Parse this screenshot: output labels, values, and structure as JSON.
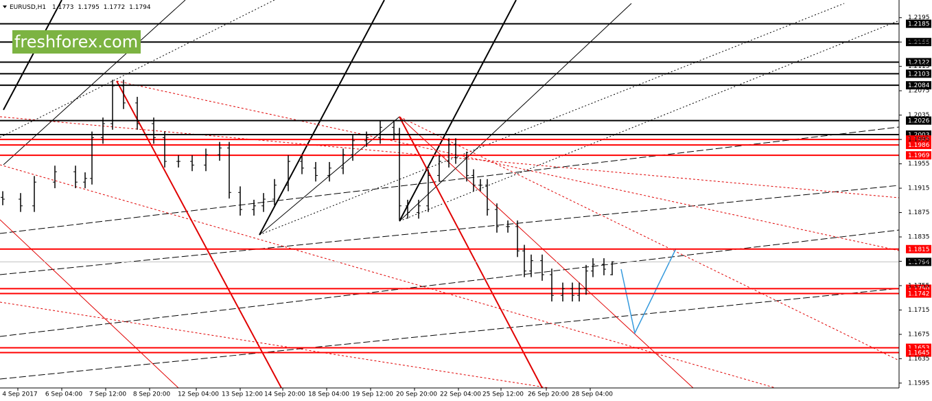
{
  "chart_data": {
    "type": "ohlc",
    "title": "EURUSD,H1",
    "header_values": [
      1.1773,
      1.1795,
      1.1772,
      1.1794
    ],
    "watermark": "freshforex.com",
    "color": "#000000",
    "x": [
      1,
      14,
      24,
      39,
      54,
      61,
      66,
      74,
      81,
      89,
      99,
      111,
      119,
      129,
      139,
      149,
      159,
      166,
      174,
      184,
      191,
      199,
      209,
      219,
      229,
      239,
      249,
      256,
      266,
      276,
      286,
      290,
      296,
      304,
      311,
      319,
      326,
      331,
      339,
      344,
      349,
      354,
      361,
      369,
      376,
      381,
      386,
      394,
      401,
      409,
      416,
      421,
      426,
      431,
      439,
      445
    ],
    "open": [
      1.19,
      1.1897,
      1.1886,
      1.1925,
      1.1942,
      1.1925,
      1.1931,
      1.1998,
      1.2021,
      1.2083,
      1.2055,
      1.2021,
      1.1998,
      1.1959,
      1.1959,
      1.1953,
      1.197,
      1.1981,
      1.1908,
      1.188,
      1.1886,
      1.1897,
      1.192,
      1.1959,
      1.1948,
      1.1936,
      1.1948,
      1.197,
      1.1993,
      1.1998,
      1.2015,
      1.2004,
      1.1886,
      1.1875,
      1.1886,
      1.1936,
      1.1959,
      1.1987,
      1.1965,
      1.1936,
      1.192,
      1.192,
      1.188,
      1.1852,
      1.1852,
      1.1812,
      1.1779,
      1.1796,
      1.1773,
      1.1739,
      1.175,
      1.1739,
      1.175,
      1.1779,
      1.179,
      1.1773
    ],
    "high": [
      1.191,
      1.1907,
      1.1935,
      1.1952,
      1.1952,
      1.1941,
      1.2008,
      1.2031,
      1.2093,
      1.2093,
      1.2065,
      1.2031,
      1.2008,
      1.1969,
      1.1969,
      1.198,
      1.1991,
      1.1991,
      1.1918,
      1.1896,
      1.1907,
      1.193,
      1.1969,
      1.1969,
      1.1958,
      1.1958,
      1.198,
      1.2003,
      1.2008,
      1.2025,
      1.2025,
      1.2014,
      1.1896,
      1.1896,
      1.1946,
      1.1969,
      1.1997,
      1.1997,
      1.1975,
      1.1946,
      1.193,
      1.193,
      1.189,
      1.1862,
      1.1862,
      1.1822,
      1.1806,
      1.1806,
      1.1783,
      1.176,
      1.176,
      1.176,
      1.1789,
      1.18,
      1.18,
      1.1795
    ],
    "low": [
      1.1887,
      1.1876,
      1.1876,
      1.1915,
      1.1915,
      1.1915,
      1.1921,
      1.1988,
      1.2011,
      1.2045,
      1.2011,
      1.1988,
      1.1949,
      1.1949,
      1.1943,
      1.1943,
      1.196,
      1.1898,
      1.187,
      1.187,
      1.1876,
      1.1887,
      1.191,
      1.1938,
      1.1926,
      1.1926,
      1.1938,
      1.196,
      1.1983,
      1.1988,
      1.1994,
      1.1863,
      1.1865,
      1.1865,
      1.1876,
      1.1926,
      1.1949,
      1.1955,
      1.1926,
      1.191,
      1.191,
      1.187,
      1.1842,
      1.1842,
      1.1802,
      1.1769,
      1.1769,
      1.1763,
      1.1729,
      1.1729,
      1.1729,
      1.1729,
      1.174,
      1.1769,
      1.1772,
      1.1772
    ],
    "close": [
      1.1897,
      1.1886,
      1.1925,
      1.1942,
      1.1925,
      1.1931,
      1.1998,
      1.2021,
      1.2083,
      1.2055,
      1.2021,
      1.1998,
      1.1959,
      1.1959,
      1.1953,
      1.197,
      1.1981,
      1.1908,
      1.188,
      1.1886,
      1.1897,
      1.192,
      1.1959,
      1.1948,
      1.1936,
      1.1948,
      1.197,
      1.1993,
      1.1998,
      1.2015,
      1.2004,
      1.1886,
      1.1875,
      1.1886,
      1.1936,
      1.1959,
      1.1987,
      1.1965,
      1.1936,
      1.192,
      1.192,
      1.188,
      1.1852,
      1.1852,
      1.1812,
      1.1779,
      1.1796,
      1.1773,
      1.1739,
      1.175,
      1.1739,
      1.175,
      1.1779,
      1.179,
      1.1782,
      1.1794
    ],
    "xlim": [
      -1,
      654
    ],
    "xticks": [
      {
        "value": 12,
        "label": "4 Sep 2017"
      },
      {
        "value": 44,
        "label": "6 Sep 04:00"
      },
      {
        "value": 76,
        "label": "7 Sep 12:00"
      },
      {
        "value": 108,
        "label": "8 Sep 20:00"
      },
      {
        "value": 142,
        "label": "12 Sep 04:00"
      },
      {
        "value": 174,
        "label": "13 Sep 12:00"
      },
      {
        "value": 205,
        "label": "14 Sep 20:00"
      },
      {
        "value": 237,
        "label": "18 Sep 04:00"
      },
      {
        "value": 269,
        "label": "19 Sep 12:00"
      },
      {
        "value": 301,
        "label": "20 Sep 20:00"
      },
      {
        "value": 333,
        "label": "22 Sep 04:00"
      },
      {
        "value": 364,
        "label": "25 Sep 12:00"
      },
      {
        "value": 397,
        "label": "26 Sep 20:00"
      },
      {
        "value": 429,
        "label": "28 Sep 04:00"
      }
    ],
    "ylim": [
      1.1587,
      1.2224
    ],
    "yticks": [
      1.2195,
      1.2155,
      1.2115,
      1.2075,
      1.2035,
      1.1995,
      1.1955,
      1.1915,
      1.1875,
      1.1835,
      1.1795,
      1.1755,
      1.1715,
      1.1675,
      1.1635,
      1.1595
    ],
    "levels": [
      {
        "value": 1.2185,
        "color": "#000000"
      },
      {
        "value": 1.2155,
        "color": "#000000"
      },
      {
        "value": 1.2122,
        "color": "#000000"
      },
      {
        "value": 1.2103,
        "color": "#000000"
      },
      {
        "value": 1.2084,
        "color": "#000000"
      },
      {
        "value": 1.2026,
        "color": "#000000"
      },
      {
        "value": 1.2003,
        "color": "#000000"
      },
      {
        "value": 1.1995,
        "color": "#ff0000"
      },
      {
        "value": 1.1986,
        "color": "#ff0000"
      },
      {
        "value": 1.1969,
        "color": "#ff0000"
      },
      {
        "value": 1.1815,
        "color": "#ff0000"
      },
      {
        "value": 1.1794,
        "color": "#000000",
        "line_color": "#c0c0c0"
      },
      {
        "value": 1.175,
        "label": "1.1750",
        "color": "#ff0000"
      },
      {
        "value": 1.1742,
        "color": "#ff0000"
      },
      {
        "value": 1.1653,
        "color": "#ff0000"
      },
      {
        "value": 1.1645,
        "color": "#ff0000"
      }
    ]
  }
}
